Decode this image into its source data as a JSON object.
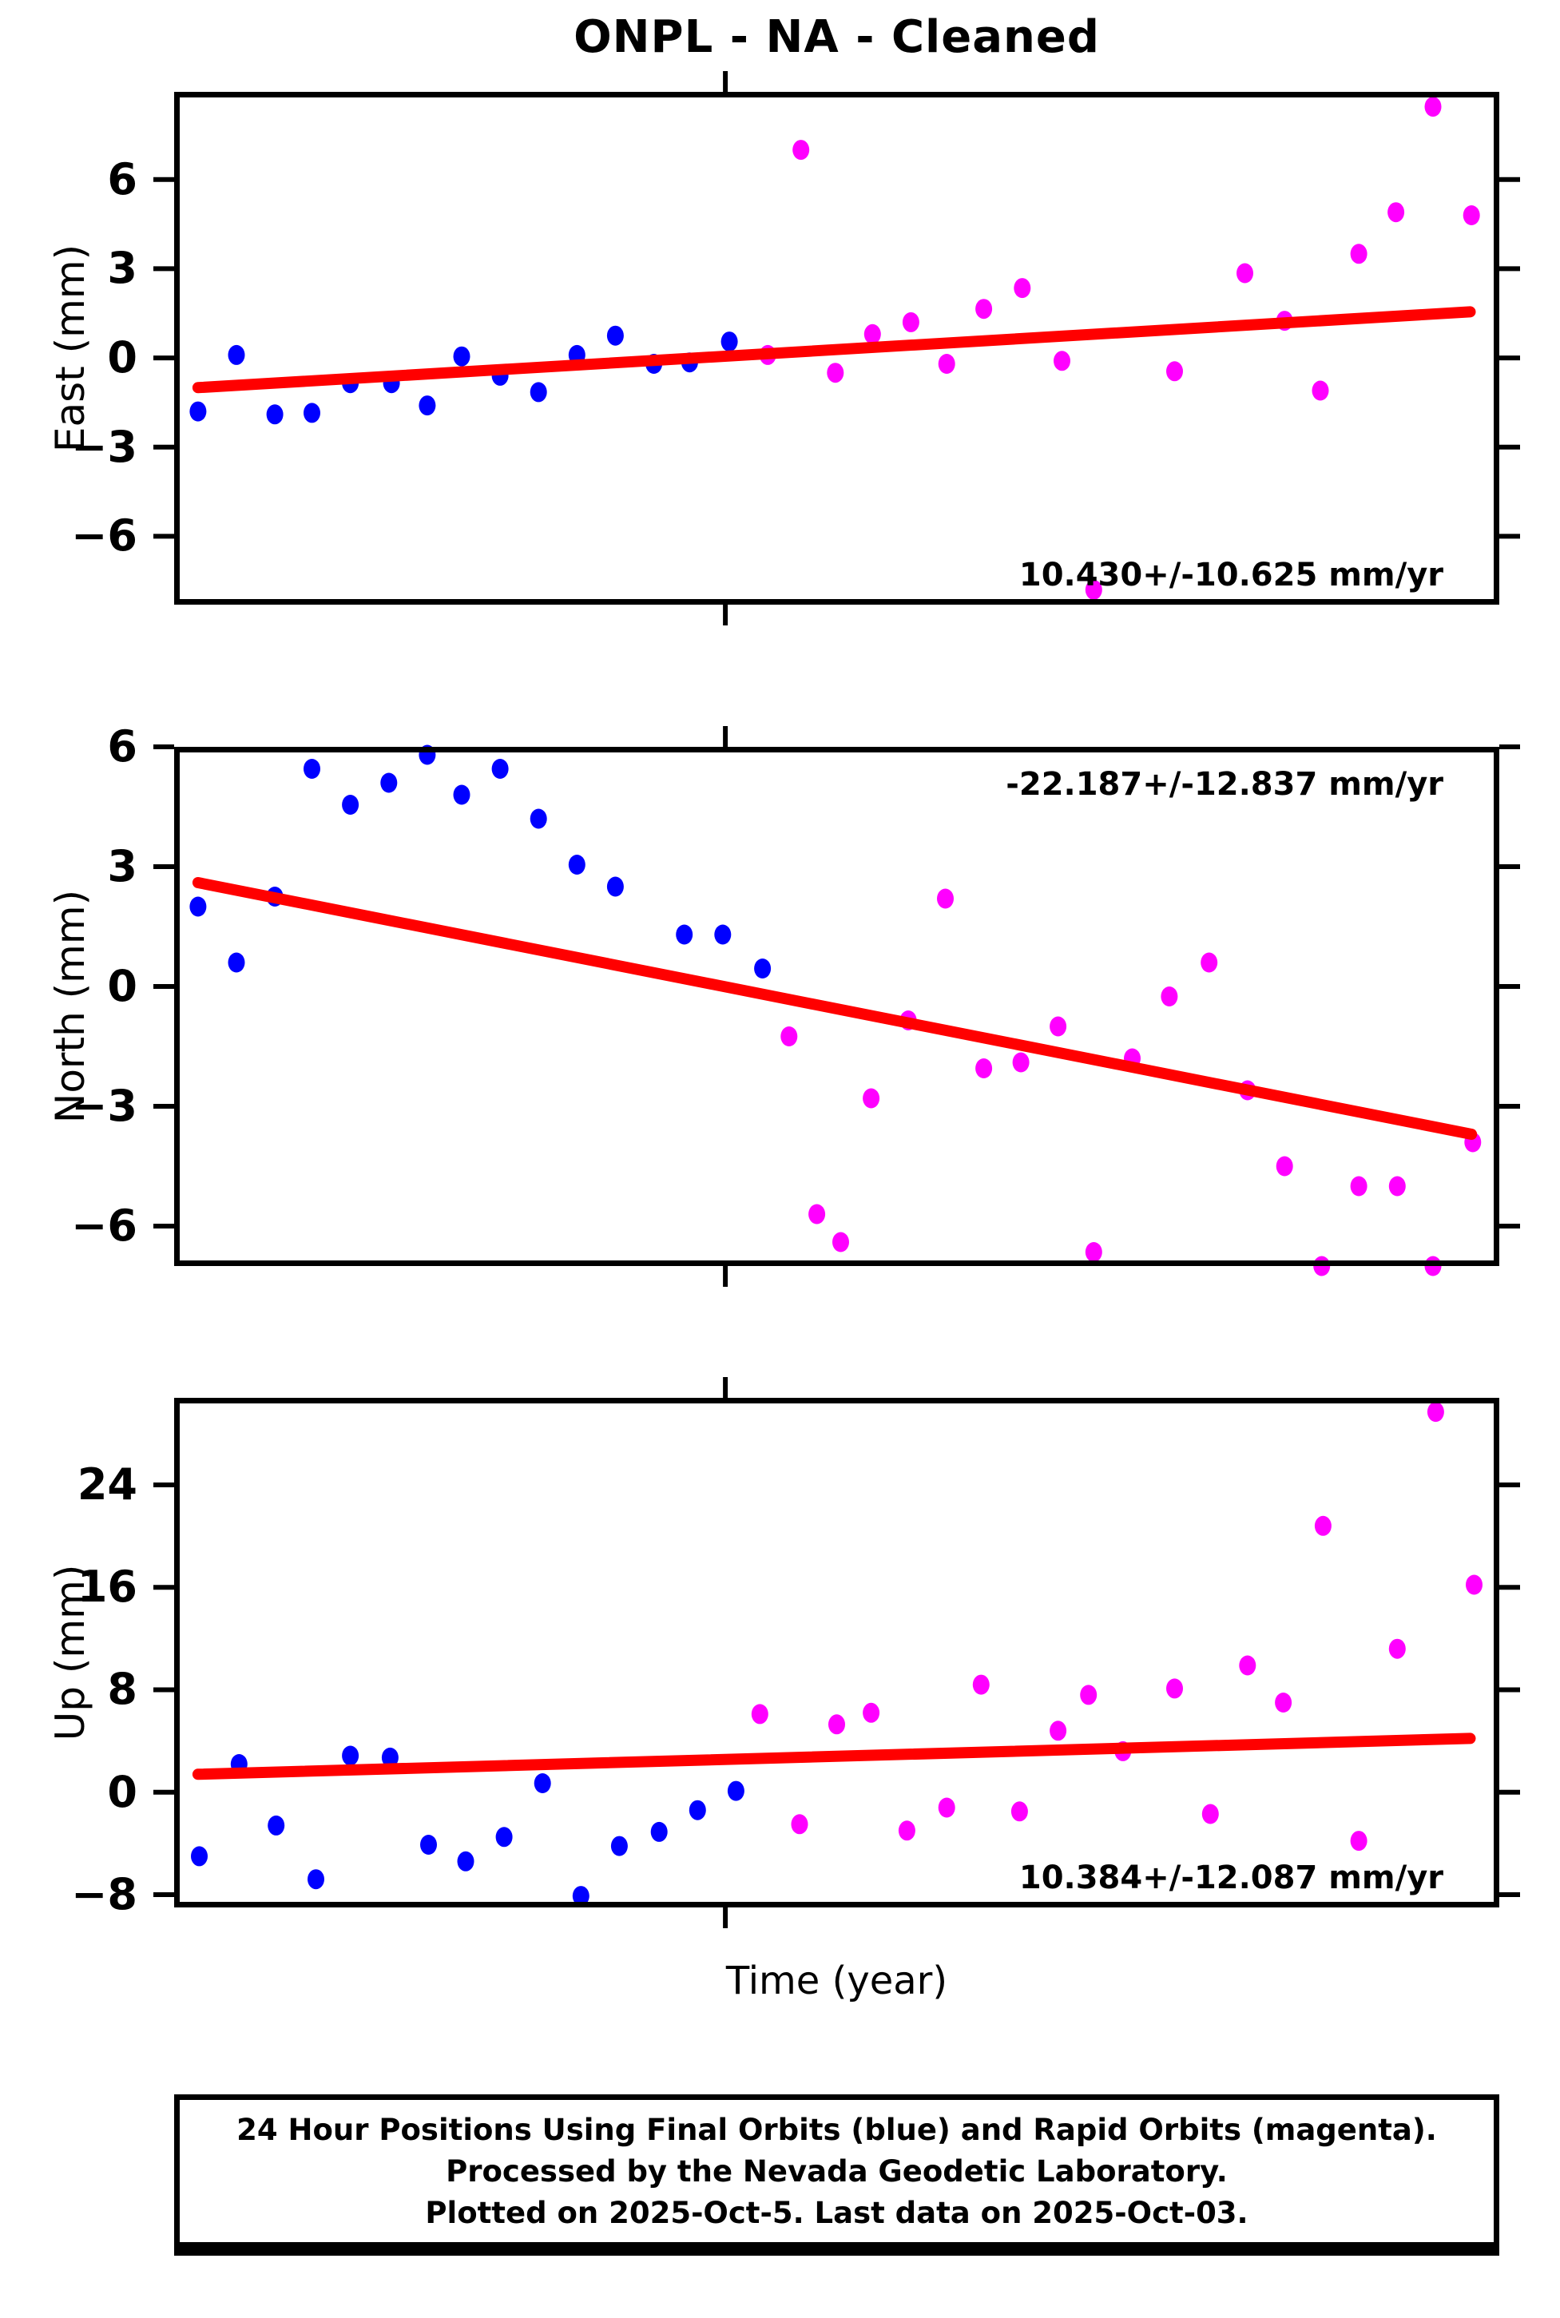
{
  "title": "ONPL  - NA - Cleaned",
  "xlabel": "Time (year)",
  "caption": {
    "lines": [
      "24 Hour Positions Using Final Orbits (blue) and Rapid Orbits (magenta).",
      "Processed by the Nevada Geodetic Laboratory.",
      "Plotted on 2025-Oct-5. Last data on 2025-Oct-03."
    ]
  },
  "colors": {
    "final_orbits": "#0000ff",
    "rapid_orbits": "#ff00ff",
    "trend": "#ff0000",
    "axis": "#000000"
  },
  "chart_data": [
    {
      "type": "scatter",
      "id": "east",
      "ylabel": "East (mm)",
      "yticks": [
        -6,
        -3,
        0,
        3,
        6
      ],
      "ylim": [
        -8.3,
        8.95
      ],
      "xlim": [
        0,
        1
      ],
      "xtick_frac": 0.416,
      "grid": false,
      "annotation": {
        "text": "10.430+/-10.625 mm/yr",
        "position": "bottom-right"
      },
      "trend": {
        "x": [
          0.018,
          0.978
        ],
        "y": [
          -1.0,
          1.55
        ]
      },
      "series": [
        {
          "name": "final-orbits",
          "color_key": "final_orbits",
          "points": [
            [
              0.018,
              -1.8
            ],
            [
              0.047,
              0.1
            ],
            [
              0.076,
              -1.9
            ],
            [
              0.104,
              -1.85
            ],
            [
              0.133,
              -0.85
            ],
            [
              0.164,
              -0.85
            ],
            [
              0.191,
              -1.6
            ],
            [
              0.217,
              0.05
            ],
            [
              0.246,
              -0.6
            ],
            [
              0.275,
              -1.15
            ],
            [
              0.304,
              0.1
            ],
            [
              0.333,
              0.75
            ],
            [
              0.362,
              -0.2
            ],
            [
              0.389,
              -0.15
            ],
            [
              0.419,
              0.55
            ]
          ]
        },
        {
          "name": "rapid-orbits",
          "color_key": "rapid_orbits",
          "points": [
            [
              0.448,
              0.1
            ],
            [
              0.473,
              7.0
            ],
            [
              0.499,
              -0.5
            ],
            [
              0.527,
              0.8
            ],
            [
              0.556,
              1.2
            ],
            [
              0.583,
              -0.2
            ],
            [
              0.611,
              1.65
            ],
            [
              0.64,
              2.35
            ],
            [
              0.67,
              -0.1
            ],
            [
              0.694,
              -7.8
            ],
            [
              0.755,
              -0.45
            ],
            [
              0.808,
              2.85
            ],
            [
              0.838,
              1.25
            ],
            [
              0.865,
              -1.1
            ],
            [
              0.894,
              3.5
            ],
            [
              0.922,
              4.9
            ],
            [
              0.95,
              8.45
            ],
            [
              0.979,
              4.8
            ]
          ]
        }
      ]
    },
    {
      "type": "scatter",
      "id": "north",
      "ylabel": "North (mm)",
      "yticks": [
        -6,
        -3,
        0,
        3,
        6
      ],
      "ylim": [
        -7.0,
        6.0
      ],
      "xlim": [
        0,
        1
      ],
      "xtick_frac": 0.416,
      "grid": false,
      "annotation": {
        "text": "-22.187+/-12.837 mm/yr",
        "position": "top-right"
      },
      "trend": {
        "x": [
          0.018,
          0.979
        ],
        "y": [
          2.6,
          -3.7
        ]
      },
      "series": [
        {
          "name": "final-orbits",
          "color_key": "final_orbits",
          "points": [
            [
              0.018,
              2.0
            ],
            [
              0.047,
              0.6
            ],
            [
              0.076,
              2.25
            ],
            [
              0.104,
              5.45
            ],
            [
              0.133,
              4.55
            ],
            [
              0.162,
              5.1
            ],
            [
              0.191,
              5.8
            ],
            [
              0.217,
              4.8
            ],
            [
              0.246,
              5.45
            ],
            [
              0.275,
              4.2
            ],
            [
              0.304,
              3.05
            ],
            [
              0.333,
              2.5
            ],
            [
              0.385,
              1.3
            ],
            [
              0.414,
              1.3
            ],
            [
              0.444,
              0.45
            ]
          ]
        },
        {
          "name": "rapid-orbits",
          "color_key": "rapid_orbits",
          "points": [
            [
              0.464,
              -1.25
            ],
            [
              0.485,
              -5.7
            ],
            [
              0.503,
              -6.4
            ],
            [
              0.526,
              -2.8
            ],
            [
              0.554,
              -0.85
            ],
            [
              0.582,
              2.2
            ],
            [
              0.611,
              -2.05
            ],
            [
              0.639,
              -1.9
            ],
            [
              0.667,
              -1.0
            ],
            [
              0.694,
              -6.65
            ],
            [
              0.723,
              -1.8
            ],
            [
              0.751,
              -0.25
            ],
            [
              0.781,
              0.6
            ],
            [
              0.81,
              -2.6
            ],
            [
              0.838,
              -4.5
            ],
            [
              0.866,
              -7.0
            ],
            [
              0.894,
              -5.0
            ],
            [
              0.923,
              -5.0
            ],
            [
              0.95,
              -7.0
            ],
            [
              0.98,
              -3.9
            ]
          ]
        }
      ]
    },
    {
      "type": "scatter",
      "id": "up",
      "ylabel": "Up (mm)",
      "yticks": [
        -8,
        0,
        8,
        16,
        24
      ],
      "ylim": [
        -9.0,
        30.8
      ],
      "xlim": [
        0,
        1
      ],
      "xtick_frac": 0.416,
      "grid": false,
      "annotation": {
        "text": "10.384+/-12.087 mm/yr",
        "position": "bottom-right"
      },
      "trend": {
        "x": [
          0.018,
          0.978
        ],
        "y": [
          1.4,
          4.2
        ]
      },
      "series": [
        {
          "name": "final-orbits",
          "color_key": "final_orbits",
          "points": [
            [
              0.019,
              -5.0
            ],
            [
              0.049,
              2.2
            ],
            [
              0.077,
              -2.6
            ],
            [
              0.107,
              -6.8
            ],
            [
              0.133,
              2.85
            ],
            [
              0.163,
              2.7
            ],
            [
              0.192,
              -4.1
            ],
            [
              0.22,
              -5.4
            ],
            [
              0.249,
              -3.5
            ],
            [
              0.278,
              0.7
            ],
            [
              0.307,
              -8.1
            ],
            [
              0.336,
              -4.2
            ],
            [
              0.366,
              -3.1
            ],
            [
              0.395,
              -1.4
            ],
            [
              0.424,
              0.1
            ]
          ]
        },
        {
          "name": "rapid-orbits",
          "color_key": "rapid_orbits",
          "points": [
            [
              0.442,
              6.1
            ],
            [
              0.472,
              -2.5
            ],
            [
              0.5,
              5.3
            ],
            [
              0.526,
              6.2
            ],
            [
              0.553,
              -3.0
            ],
            [
              0.583,
              -1.2
            ],
            [
              0.609,
              8.4
            ],
            [
              0.638,
              -1.5
            ],
            [
              0.667,
              4.8
            ],
            [
              0.69,
              7.6
            ],
            [
              0.716,
              3.2
            ],
            [
              0.755,
              8.1
            ],
            [
              0.782,
              -1.7
            ],
            [
              0.81,
              9.9
            ],
            [
              0.837,
              7.0
            ],
            [
              0.867,
              20.8
            ],
            [
              0.894,
              -3.8
            ],
            [
              0.923,
              11.2
            ],
            [
              0.952,
              29.7
            ],
            [
              0.981,
              16.2
            ]
          ]
        }
      ]
    }
  ]
}
